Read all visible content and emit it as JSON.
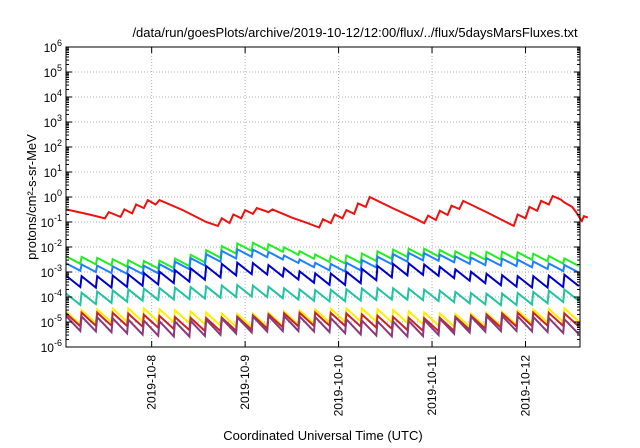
{
  "chart_data": {
    "type": "line",
    "title": "/data/run/goesPlots/archive/2019-10-12/12:00/flux/../flux/5daysMarsFluxes.txt",
    "xlabel": "Coordinated Universal Time (UTC)",
    "ylabel": "protons/cm²-s-sr-MeV",
    "yscale": "log",
    "ylim": [
      1e-06,
      1000000.0
    ],
    "xlim": [
      "2019-10-07 02:00",
      "2019-10-12 14:00"
    ],
    "grid": true,
    "legend": "none",
    "x_ticks": [
      "2019-10-8",
      "2019-10-9",
      "2019-10-10",
      "2019-10-11",
      "2019-10-12"
    ],
    "y_ticks": [
      {
        "base": "10",
        "exp": "-6"
      },
      {
        "base": "10",
        "exp": "-5"
      },
      {
        "base": "10",
        "exp": "-4"
      },
      {
        "base": "10",
        "exp": "-3"
      },
      {
        "base": "10",
        "exp": "-2"
      },
      {
        "base": "10",
        "exp": "-1"
      },
      {
        "base": "10",
        "exp": "0"
      },
      {
        "base": "10",
        "exp": "1"
      },
      {
        "base": "10",
        "exp": "2"
      },
      {
        "base": "10",
        "exp": "3"
      },
      {
        "base": "10",
        "exp": "4"
      },
      {
        "base": "10",
        "exp": "5"
      },
      {
        "base": "10",
        "exp": "6"
      }
    ],
    "series": [
      {
        "color": "#ee1111",
        "points": [
          [
            "2019-10-07 02:00",
            0.32
          ],
          [
            "2019-10-07 08:00",
            0.2
          ],
          [
            "2019-10-07 12:00",
            0.14
          ],
          [
            "2019-10-07 13:00",
            0.25
          ],
          [
            "2019-10-07 16:00",
            0.16
          ],
          [
            "2019-10-07 17:00",
            0.32
          ],
          [
            "2019-10-07 19:00",
            0.22
          ],
          [
            "2019-10-07 20:00",
            0.5
          ],
          [
            "2019-10-07 22:00",
            0.36
          ],
          [
            "2019-10-07 23:00",
            0.75
          ],
          [
            "2019-10-08 01:00",
            0.5
          ],
          [
            "2019-10-08 02:00",
            0.75
          ],
          [
            "2019-10-08 08:00",
            0.3
          ],
          [
            "2019-10-08 14:00",
            0.1
          ],
          [
            "2019-10-08 17:00",
            0.07
          ],
          [
            "2019-10-08 18:00",
            0.14
          ],
          [
            "2019-10-08 20:00",
            0.09
          ],
          [
            "2019-10-08 21:00",
            0.2
          ],
          [
            "2019-10-08 23:00",
            0.14
          ],
          [
            "2019-10-09 00:00",
            0.3
          ],
          [
            "2019-10-09 02:00",
            0.21
          ],
          [
            "2019-10-09 03:00",
            0.36
          ],
          [
            "2019-10-09 06:00",
            0.25
          ],
          [
            "2019-10-09 07:00",
            0.32
          ],
          [
            "2019-10-09 12:00",
            0.15
          ],
          [
            "2019-10-09 16:00",
            0.09
          ],
          [
            "2019-10-09 19:00",
            0.06
          ],
          [
            "2019-10-09 20:00",
            0.13
          ],
          [
            "2019-10-09 22:00",
            0.09
          ],
          [
            "2019-10-09 23:00",
            0.2
          ],
          [
            "2019-10-10 01:00",
            0.14
          ],
          [
            "2019-10-10 02:00",
            0.3
          ],
          [
            "2019-10-10 04:00",
            0.21
          ],
          [
            "2019-10-10 05:00",
            0.55
          ],
          [
            "2019-10-10 07:00",
            0.4
          ],
          [
            "2019-10-10 08:00",
            1.0
          ],
          [
            "2019-10-10 14:00",
            0.35
          ],
          [
            "2019-10-10 20:00",
            0.13
          ],
          [
            "2019-10-10 22:00",
            0.09
          ],
          [
            "2019-10-10 23:00",
            0.18
          ],
          [
            "2019-10-11 01:00",
            0.12
          ],
          [
            "2019-10-11 02:00",
            0.28
          ],
          [
            "2019-10-11 04:00",
            0.19
          ],
          [
            "2019-10-11 05:00",
            0.45
          ],
          [
            "2019-10-11 07:00",
            0.33
          ],
          [
            "2019-10-11 08:00",
            0.7
          ],
          [
            "2019-10-11 14:00",
            0.25
          ],
          [
            "2019-10-11 21:00",
            0.07
          ],
          [
            "2019-10-11 22:00",
            0.2
          ],
          [
            "2019-10-12 00:00",
            0.14
          ],
          [
            "2019-10-12 01:00",
            0.4
          ],
          [
            "2019-10-12 03:00",
            0.28
          ],
          [
            "2019-10-12 04:00",
            0.7
          ],
          [
            "2019-10-12 06:00",
            0.5
          ],
          [
            "2019-10-12 07:00",
            1.1
          ],
          [
            "2019-10-12 09:00",
            0.8
          ],
          [
            "2019-10-12 10:00",
            0.6
          ],
          [
            "2019-10-12 12:00",
            0.4
          ],
          [
            "2019-10-12 13:00",
            0.25
          ],
          [
            "2019-10-12 14:00",
            0.14
          ],
          [
            "2019-10-12 14:30",
            0.11
          ],
          [
            "2019-10-12 15:00",
            0.17
          ],
          [
            "2019-10-12 16:00",
            0.15
          ]
        ]
      },
      {
        "color": "#22ee22",
        "sawtooth": {
          "base": 0.0035,
          "drop": 0.5,
          "bumps": [
            [
              "2019-10-09 00:00",
              3.5
            ],
            [
              "2019-10-10 16:00",
              3.0
            ],
            [
              "2019-10-11 21:00",
              1.5
            ]
          ]
        }
      },
      {
        "color": "#1e7fff",
        "sawtooth": {
          "base": 0.0022,
          "drop": 0.5,
          "bumps": [
            [
              "2019-10-09 00:00",
              3.0
            ],
            [
              "2019-10-10 16:00",
              2.5
            ],
            [
              "2019-10-11 21:00",
              1.5
            ]
          ]
        }
      },
      {
        "color": "#0000cc",
        "sawtooth": {
          "base": 0.0009,
          "drop": 0.35,
          "bumps": [
            [
              "2019-10-09 02:00",
              2.5
            ],
            [
              "2019-10-10 16:00",
              2.0
            ]
          ]
        }
      },
      {
        "color": "#22c4a0",
        "sawtooth": {
          "base": 0.00018,
          "drop": 0.35,
          "bumps": [
            [
              "2019-10-09 02:00",
              2.0
            ]
          ]
        }
      },
      {
        "color": "#ffee00",
        "sawtooth": {
          "base": 2.8e-05,
          "drop": 0.3,
          "bumps": []
        }
      },
      {
        "color": "#cc2222",
        "sawtooth": {
          "base": 1.9e-05,
          "drop": 0.3,
          "bumps": []
        }
      },
      {
        "color": "#8a3a7a",
        "sawtooth": {
          "base": 1.4e-05,
          "drop": 0.25,
          "bumps": []
        }
      }
    ]
  }
}
